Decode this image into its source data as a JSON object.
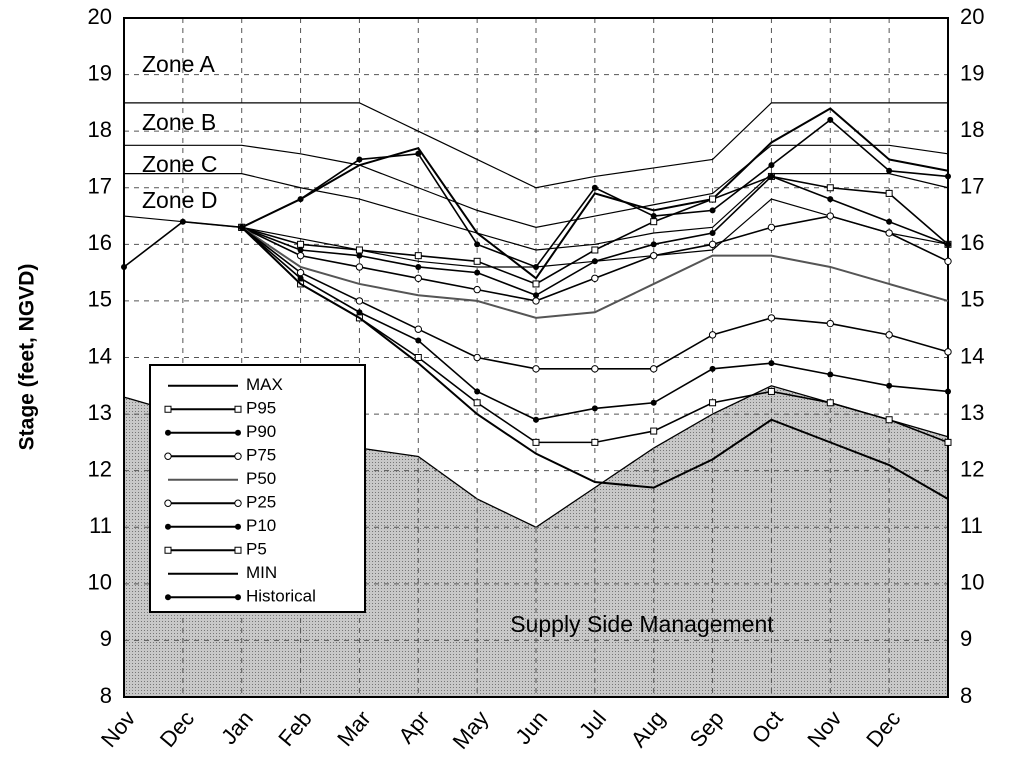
{
  "chart_data": {
    "type": "line",
    "ylabel": "Stage (feet, NGVD)",
    "categories": [
      "Nov",
      "Dec",
      "Jan",
      "Feb",
      "Mar",
      "Apr",
      "May",
      "Jun",
      "Jul",
      "Aug",
      "Sep",
      "Oct",
      "Nov",
      "Dec",
      null
    ],
    "ylim": [
      8,
      20
    ],
    "yticks": [
      8,
      9,
      10,
      11,
      12,
      13,
      14,
      15,
      16,
      17,
      18,
      19,
      20
    ],
    "grid": true,
    "legend": "lower left",
    "zones": [
      {
        "label": "Zone A",
        "values": [
          18.5,
          18.5,
          18.5,
          18.5,
          18.5,
          18.0,
          17.5,
          17.0,
          17.2,
          17.35,
          17.5,
          18.5,
          18.5,
          18.5,
          18.5
        ]
      },
      {
        "label": "Zone B",
        "values": [
          17.75,
          17.75,
          17.75,
          17.6,
          17.4,
          17.0,
          16.6,
          16.3,
          16.5,
          16.7,
          16.9,
          17.75,
          17.75,
          17.75,
          17.6
        ]
      },
      {
        "label": "Zone C",
        "values": [
          17.25,
          17.25,
          17.25,
          17.0,
          16.8,
          16.5,
          16.2,
          15.9,
          16.0,
          16.2,
          16.3,
          17.25,
          17.25,
          17.25,
          17.0
        ]
      },
      {
        "label": "Zone D",
        "values": [
          16.5,
          16.4,
          16.3,
          16.1,
          15.9,
          15.7,
          15.6,
          15.6,
          15.7,
          15.8,
          15.9,
          16.8,
          16.5,
          16.2,
          16.0
        ]
      }
    ],
    "area": {
      "label": "Supply Side Management",
      "color": "#c8c8c8",
      "values": [
        13.3,
        13.0,
        12.8,
        12.6,
        12.4,
        12.25,
        11.5,
        11.0,
        11.7,
        12.4,
        13.0,
        13.5,
        13.2,
        12.9,
        12.6
      ]
    },
    "series": [
      {
        "name": "MAX",
        "color": "#000000",
        "marker": "none",
        "values": [
          null,
          null,
          16.3,
          16.8,
          17.4,
          17.7,
          16.2,
          15.4,
          16.9,
          16.6,
          16.8,
          17.8,
          18.4,
          17.5,
          17.3
        ]
      },
      {
        "name": "P95",
        "color": "#000000",
        "marker": "square-open",
        "values": [
          null,
          null,
          16.3,
          16.0,
          15.9,
          15.8,
          15.7,
          15.3,
          15.9,
          16.4,
          16.8,
          17.2,
          17.0,
          16.9,
          16.0
        ]
      },
      {
        "name": "P90",
        "color": "#000000",
        "marker": "circle-filled",
        "values": [
          null,
          null,
          16.3,
          15.9,
          15.8,
          15.6,
          15.5,
          15.1,
          15.7,
          16.0,
          16.2,
          17.2,
          16.8,
          16.4,
          16.0
        ]
      },
      {
        "name": "P75",
        "color": "#000000",
        "marker": "circle-open",
        "values": [
          null,
          null,
          16.3,
          15.8,
          15.6,
          15.4,
          15.2,
          15.0,
          15.4,
          15.8,
          16.0,
          16.3,
          16.5,
          16.2,
          15.7
        ]
      },
      {
        "name": "P50",
        "color": "#555555",
        "marker": "none",
        "values": [
          null,
          null,
          16.3,
          15.6,
          15.3,
          15.1,
          15.0,
          14.7,
          14.8,
          15.3,
          15.8,
          15.8,
          15.6,
          15.3,
          15.0
        ]
      },
      {
        "name": "P25",
        "color": "#000000",
        "marker": "circle-open",
        "values": [
          null,
          null,
          16.3,
          15.5,
          15.0,
          14.5,
          14.0,
          13.8,
          13.8,
          13.8,
          14.4,
          14.7,
          14.6,
          14.4,
          14.1
        ]
      },
      {
        "name": "P10",
        "color": "#000000",
        "marker": "circle-filled",
        "values": [
          null,
          null,
          16.3,
          15.4,
          14.8,
          14.3,
          13.4,
          12.9,
          13.1,
          13.2,
          13.8,
          13.9,
          13.7,
          13.5,
          13.4
        ]
      },
      {
        "name": "P5",
        "color": "#000000",
        "marker": "square-open",
        "values": [
          null,
          null,
          16.3,
          15.3,
          14.7,
          14.0,
          13.2,
          12.5,
          12.5,
          12.7,
          13.2,
          13.4,
          13.2,
          12.9,
          12.5
        ]
      },
      {
        "name": "MIN",
        "color": "#000000",
        "marker": "none",
        "values": [
          null,
          null,
          16.3,
          15.3,
          14.7,
          13.9,
          13.0,
          12.3,
          11.8,
          11.7,
          12.2,
          12.9,
          12.5,
          12.1,
          11.5
        ]
      },
      {
        "name": "Historical",
        "color": "#000000",
        "marker": "circle-filled",
        "values": [
          15.6,
          16.4,
          16.3,
          16.8,
          17.5,
          17.6,
          16.0,
          15.6,
          17.0,
          16.5,
          16.6,
          17.4,
          18.2,
          17.3,
          17.2
        ]
      }
    ]
  }
}
